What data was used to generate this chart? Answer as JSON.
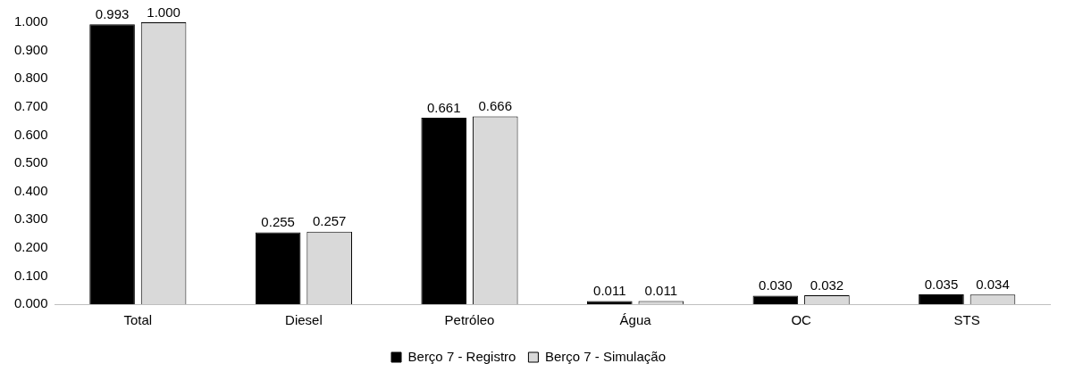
{
  "chart_data": {
    "type": "bar",
    "categories": [
      "Total",
      "Diesel",
      "Petróleo",
      "Água",
      "OC",
      "STS"
    ],
    "series": [
      {
        "name": "Berço 7 - Registro",
        "color": "#000000",
        "values": [
          0.993,
          0.255,
          0.661,
          0.011,
          0.03,
          0.035
        ],
        "value_labels": [
          "0.993",
          "0.255",
          "0.661",
          "0.011",
          "0.030",
          "0.035"
        ]
      },
      {
        "name": "Berço 7 - Simulação",
        "color": "#d9d9d9",
        "values": [
          1.0,
          0.257,
          0.666,
          0.011,
          0.032,
          0.034
        ],
        "value_labels": [
          "1.000",
          "0.257",
          "0.666",
          "0.011",
          "0.032",
          "0.034"
        ]
      }
    ],
    "ylim": [
      0,
      1
    ],
    "yticks": [
      {
        "value": 0,
        "label": "0.000"
      },
      {
        "value": 0.1,
        "label": "0.100"
      },
      {
        "value": 0.2,
        "label": "0.200"
      },
      {
        "value": 0.3,
        "label": "0.300"
      },
      {
        "value": 0.4,
        "label": "0.400"
      },
      {
        "value": 0.5,
        "label": "0.500"
      },
      {
        "value": 0.6,
        "label": "0.600"
      },
      {
        "value": 0.7,
        "label": "0.700"
      },
      {
        "value": 0.8,
        "label": "0.800"
      },
      {
        "value": 0.9,
        "label": "0.900"
      },
      {
        "value": 1,
        "label": "1.000"
      }
    ],
    "grid": false,
    "legend": "bottom"
  }
}
